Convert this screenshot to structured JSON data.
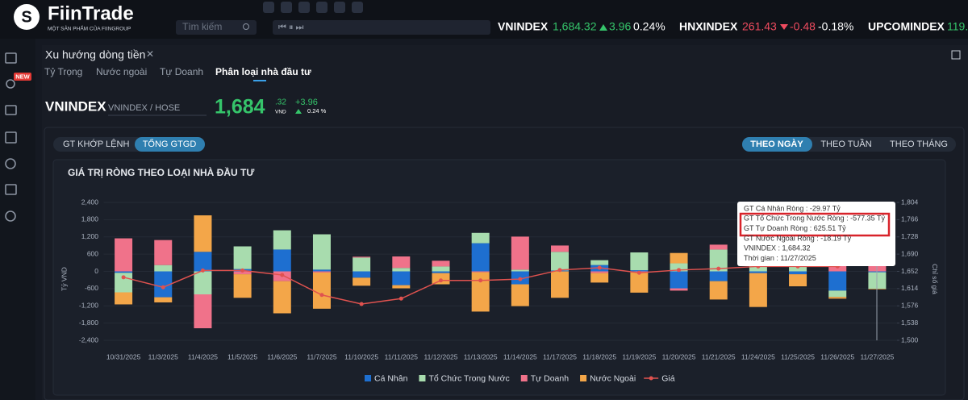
{
  "header": {
    "logo": "FiinTrade",
    "tagline": "MỘT SẢN PHẨM CỦA FIINGROUP",
    "search_placeholder": "Tìm kiếm",
    "indices": [
      {
        "name": "VNINDEX",
        "value": "1,684.32",
        "change": "3.96",
        "percent": "0.24%"
      },
      {
        "name": "HNXINDEX",
        "value": "261.43",
        "change": "-0.48",
        "percent": "-0.18%"
      },
      {
        "name": "UPCOMINDEX",
        "value": "119."
      }
    ]
  },
  "sidebar": {
    "badge": "NEW"
  },
  "panel": {
    "title": "Xu hướng dòng tiền",
    "tabs": [
      "Tỷ Trọng",
      "Nước ngoài",
      "Tự Doanh",
      "Phân loại nhà đầu tư"
    ]
  },
  "quote": {
    "symbol": "VNINDEX",
    "exchange": "VNINDEX / HOSE",
    "price": "1,684",
    "decimals": ".32",
    "unit": "VND",
    "change": "+3.96",
    "percent": "0.24 %"
  },
  "toggles": [
    "GT KHỚP LỆNH",
    "TỔNG GTGD"
  ],
  "periods": [
    "THEO NGÀY",
    "THEO TUẦN",
    "THEO THÁNG"
  ],
  "chart_data": {
    "type": "bar",
    "stacked": true,
    "title": "GIÁ TRỊ RÒNG THEO LOẠI NHÀ ĐẦU TƯ",
    "y_label": "Tỷ VND",
    "y2_label": "Chỉ số giá",
    "categories": [
      "10/31/2025",
      "11/3/2025",
      "11/4/2025",
      "11/5/2025",
      "11/6/2025",
      "11/7/2025",
      "11/10/2025",
      "11/11/2025",
      "11/12/2025",
      "11/13/2025",
      "11/14/2025",
      "11/17/2025",
      "11/18/2025",
      "11/19/2025",
      "11/20/2025",
      "11/21/2025",
      "11/24/2025",
      "11/25/2025",
      "11/26/2025",
      "11/27/2025"
    ],
    "series": [
      {
        "name": "Cá Nhân",
        "color": "#1e6fd0",
        "values": [
          -50,
          -900,
          680,
          80,
          760,
          60,
          -220,
          -480,
          -60,
          980,
          -450,
          30,
          220,
          40,
          -590,
          -340,
          -60,
          -100,
          -670,
          -29.97
        ]
      },
      {
        "name": "Tổ Chức Trong Nước",
        "color": "#a8dcae",
        "values": [
          -680,
          220,
          -800,
          790,
          670,
          1230,
          480,
          120,
          170,
          360,
          60,
          650,
          170,
          620,
          280,
          760,
          250,
          200,
          -220,
          -577.35
        ]
      },
      {
        "name": "Tự Doanh",
        "color": "#f0728a",
        "values": [
          1150,
          870,
          -1180,
          -100,
          -340,
          -40,
          30,
          400,
          200,
          -30,
          1150,
          220,
          -60,
          -40,
          -80,
          170,
          300,
          150,
          200,
          625.51
        ]
      },
      {
        "name": "Nước Ngoài",
        "color": "#f3a649",
        "values": [
          -420,
          -180,
          1270,
          -820,
          -1120,
          -1260,
          -280,
          -110,
          -390,
          -1370,
          -760,
          -920,
          -330,
          -700,
          360,
          -640,
          -1180,
          -420,
          -60,
          -18.19
        ]
      },
      {
        "name": "Giá",
        "type": "line",
        "axis": "y2",
        "color": "#e0524f",
        "values": [
          1639,
          1617,
          1654,
          1654,
          1644,
          1600,
          1580,
          1592,
          1632,
          1632,
          1635,
          1655,
          1660,
          1649,
          1655,
          1658,
          1663,
          1663,
          1663,
          1684.32
        ]
      }
    ],
    "ylim": [
      -2400,
      2400
    ],
    "yticks": [
      {
        "value": 2400,
        "label": "2,400"
      },
      {
        "value": 1800,
        "label": "1,800"
      },
      {
        "value": 1200,
        "label": "1,200"
      },
      600,
      0,
      -600,
      {
        "value": -1200,
        "label": "-1,200"
      },
      {
        "value": -1800,
        "label": "-1,800"
      },
      {
        "value": -2400,
        "label": "-2,400"
      }
    ],
    "y2lim": [
      1500,
      1804
    ],
    "y2ticks": [
      {
        "value": 1804,
        "label": "1,804"
      },
      {
        "value": 1766,
        "label": "1,766"
      },
      {
        "value": 1728,
        "label": "1,728"
      },
      {
        "value": 1690,
        "label": "1,690"
      },
      {
        "value": 1652,
        "label": "1,652"
      },
      {
        "value": 1614,
        "label": "1,614"
      },
      {
        "value": 1576,
        "label": "1,576"
      },
      {
        "value": 1538,
        "label": "1,538"
      },
      {
        "value": 1500,
        "label": "1,500"
      }
    ],
    "grid": true,
    "tooltip": [
      "GT Cá Nhân Ròng : -29.97 Tỷ",
      "GT Tổ Chức Trong Nước Ròng : -577.35 Tỷ",
      "GT Tự Doanh Ròng : 625.51 Tỷ",
      "GT Nước Ngoài Ròng : -18.19 Tỷ",
      "VNINDEX : 1,684.32",
      "Thời gian : 11/27/2025"
    ]
  }
}
